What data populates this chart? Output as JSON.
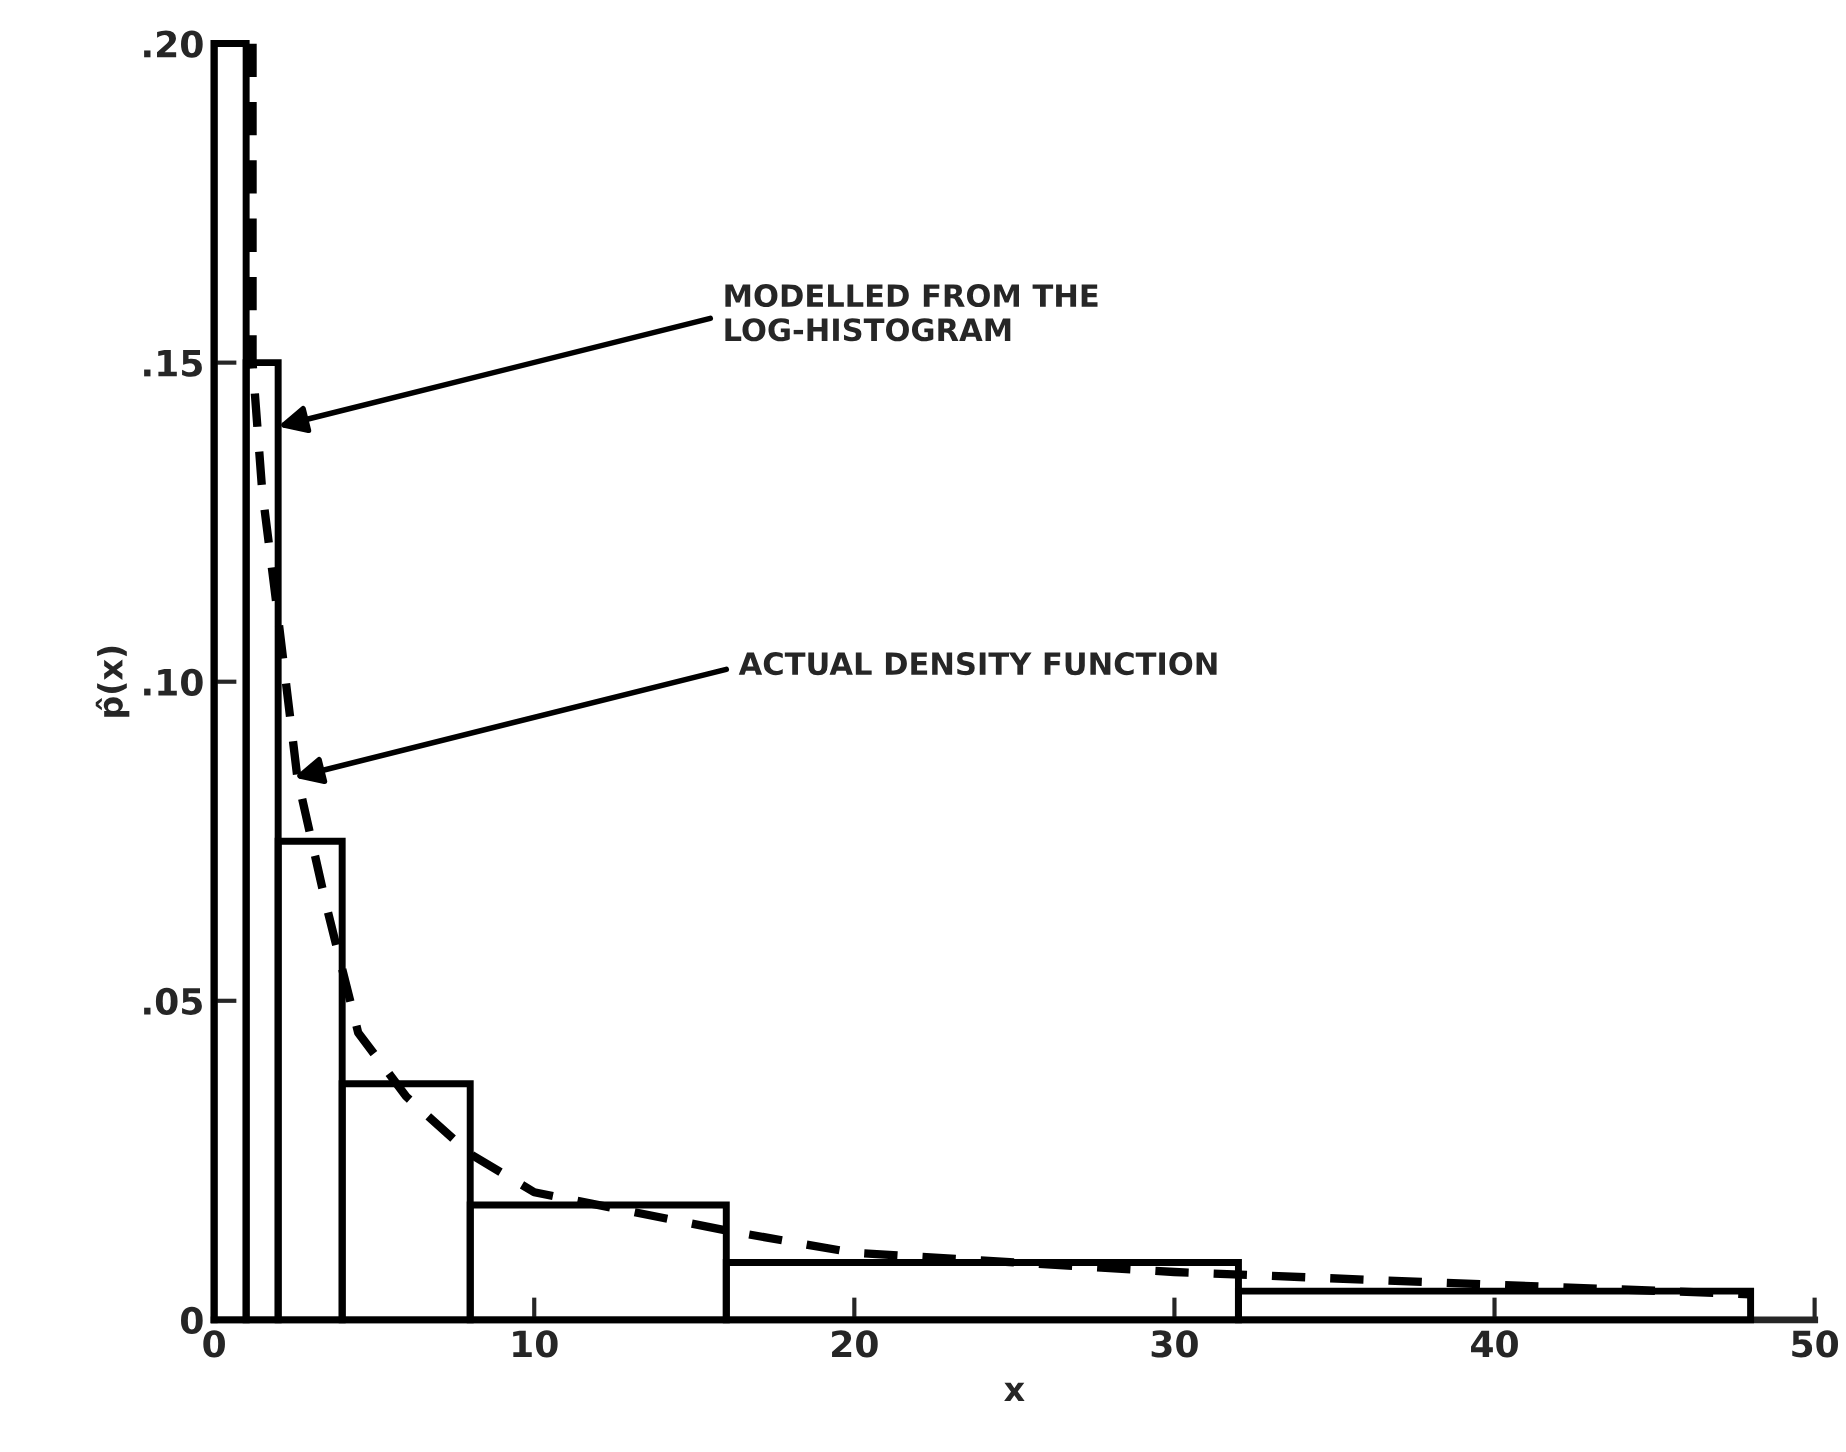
{
  "chart_data": {
    "type": "histogram",
    "xlabel": "x",
    "ylabel": "p̂(x)",
    "bins": [
      0,
      1,
      2,
      4,
      8,
      16,
      32,
      48
    ],
    "values": [
      0.2,
      0.15,
      0.075,
      0.037,
      0.018,
      0.009,
      0.0045
    ],
    "color": "#000000",
    "series": [
      {
        "type": "line",
        "line_style": "dashed",
        "color": "#000000",
        "x": [
          1.2,
          1.2,
          1.5,
          2,
          2.6,
          3.5,
          4.5,
          6,
          8,
          10,
          16,
          20,
          30,
          40,
          48
        ],
        "values": [
          0.2,
          0.15,
          0.13,
          0.11,
          0.085,
          0.065,
          0.045,
          0.035,
          0.026,
          0.02,
          0.014,
          0.0105,
          0.0075,
          0.0055,
          0.004
        ]
      }
    ],
    "annotations": [
      {
        "text": "MODELLED FROM THE\nLOG-HISTOGRAM",
        "x": 2,
        "y": 0.14
      },
      {
        "text": "ACTUAL DENSITY FUNCTION",
        "x": 2.5,
        "y": 0.085
      }
    ],
    "xlim": [
      0,
      50
    ],
    "ylim": [
      0,
      0.2
    ],
    "xticks": [
      0,
      10,
      20,
      30,
      40,
      50
    ],
    "yticks": [
      0,
      {
        "value": 0.05,
        "label": ".05"
      },
      {
        "value": 0.1,
        "label": ".10"
      },
      {
        "value": 0.15,
        "label": ".15"
      },
      {
        "value": 0.2,
        "label": ".20"
      }
    ],
    "grid": false,
    "legend": false
  }
}
